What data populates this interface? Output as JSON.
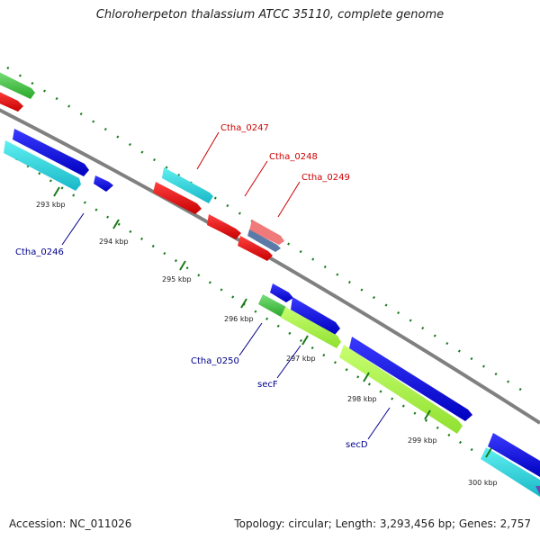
{
  "title": "Chloroherpeton thalassium ATCC 35110, complete genome",
  "footer": {
    "accession": "Accession: NC_011026",
    "summary": "Topology: circular; Length: 3,293,456 bp; Genes: 2,757"
  },
  "colors": {
    "backbone": "#808080",
    "tick": "#1a7a1a",
    "label_red": "#cc0000",
    "label_blue": "#00008b"
  },
  "ticks": [
    {
      "label": "293 kbp"
    },
    {
      "label": "294 kbp"
    },
    {
      "label": "295 kbp"
    },
    {
      "label": "296 kbp"
    },
    {
      "label": "297 kbp"
    },
    {
      "label": "298 kbp"
    },
    {
      "label": "299 kbp"
    },
    {
      "label": "300 kbp"
    }
  ],
  "gene_labels": [
    {
      "name": "Ctha_0247",
      "color": "red"
    },
    {
      "name": "Ctha_0248",
      "color": "red"
    },
    {
      "name": "Ctha_0249",
      "color": "red"
    },
    {
      "name": "Ctha_0246",
      "color": "blue"
    },
    {
      "name": "Ctha_0250",
      "color": "blue"
    },
    {
      "name": "secF",
      "color": "blue"
    },
    {
      "name": "secD",
      "color": "blue"
    }
  ]
}
